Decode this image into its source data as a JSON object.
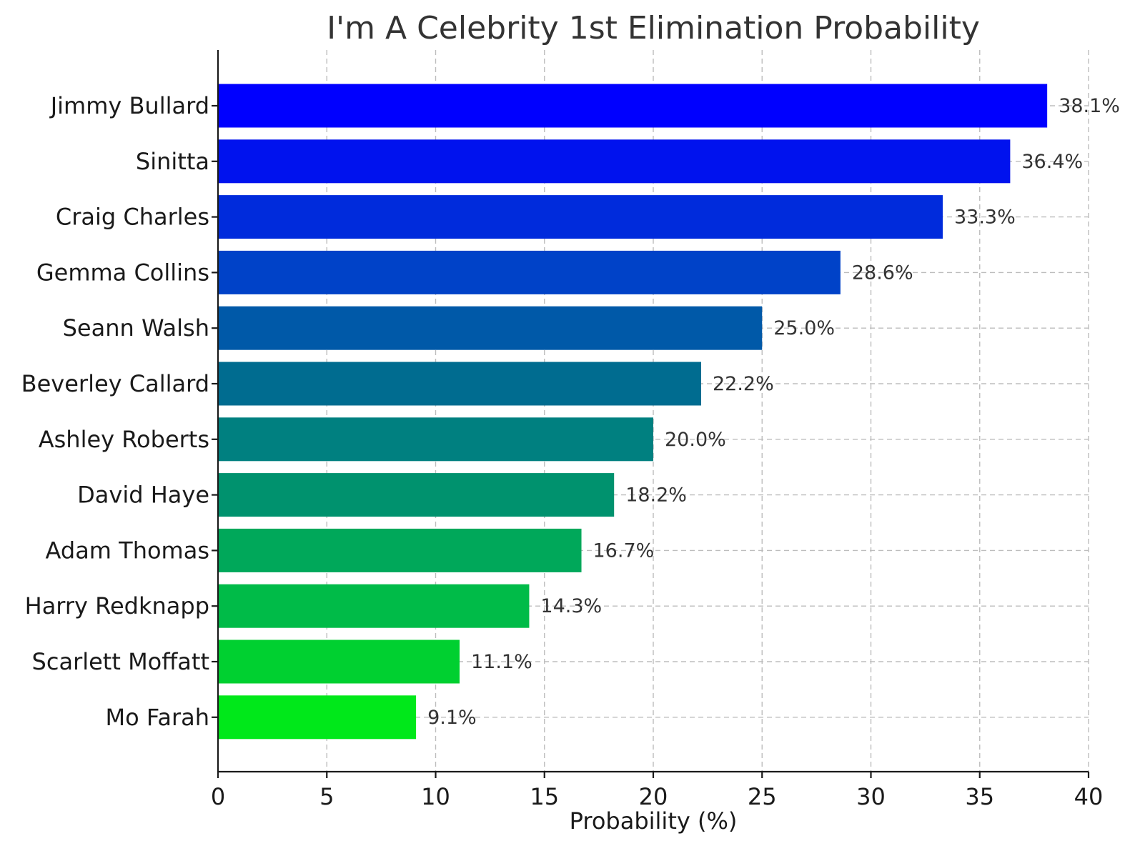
{
  "chart_data": {
    "type": "bar",
    "orientation": "horizontal",
    "title": "I'm A Celebrity 1st Elimination Probability",
    "xlabel": "Probability (%)",
    "ylabel": "",
    "xlim": [
      0,
      40
    ],
    "xticks": [
      "0",
      "5",
      "10",
      "15",
      "20",
      "25",
      "30",
      "35",
      "40"
    ],
    "grid": true,
    "categories": [
      "Jimmy Bullard",
      "Sinitta",
      "Craig Charles",
      "Gemma Collins",
      "Seann Walsh",
      "Beverley Callard",
      "Ashley Roberts",
      "David Haye",
      "Adam Thomas",
      "Harry Redknapp",
      "Scarlett Moffatt",
      "Mo Farah"
    ],
    "values": [
      38.1,
      36.4,
      33.3,
      28.6,
      25.0,
      22.2,
      20.0,
      18.2,
      16.7,
      14.3,
      11.1,
      9.1
    ],
    "value_labels": [
      "38.1%",
      "36.4%",
      "33.3%",
      "28.6%",
      "25.0%",
      "22.2%",
      "20.0%",
      "18.2%",
      "16.7%",
      "14.3%",
      "11.1%",
      "9.1%"
    ],
    "colors": [
      "#0000ff",
      "#0012ee",
      "#002bdc",
      "#0042c8",
      "#0059a8",
      "#006c90",
      "#008080",
      "#00926e",
      "#00a85a",
      "#00bb48",
      "#00d030",
      "#00e81a"
    ]
  }
}
